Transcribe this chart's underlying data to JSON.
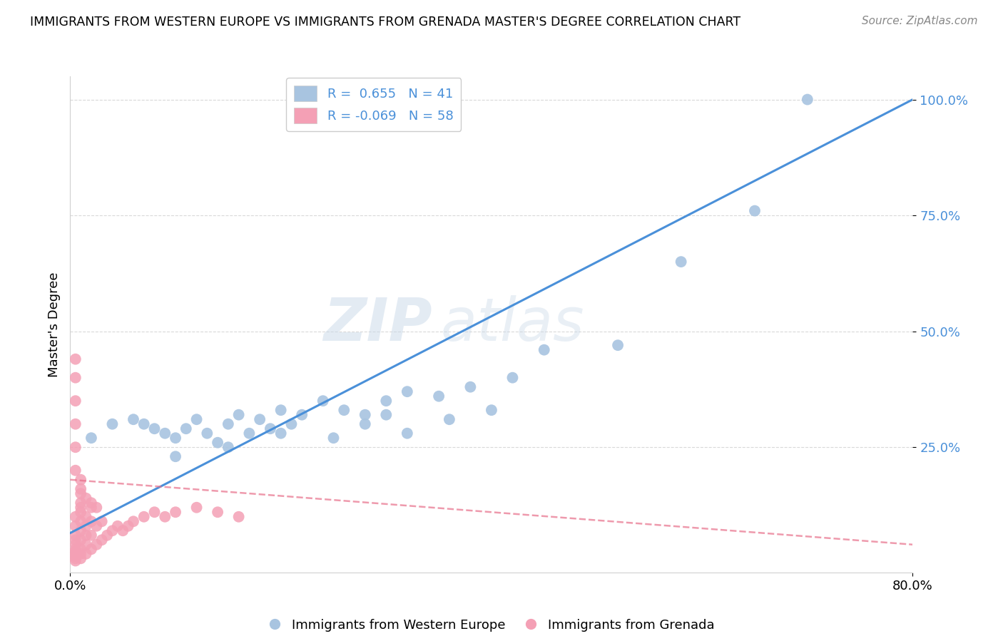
{
  "title": "IMMIGRANTS FROM WESTERN EUROPE VS IMMIGRANTS FROM GRENADA MASTER'S DEGREE CORRELATION CHART",
  "source": "Source: ZipAtlas.com",
  "ylabel": "Master's Degree",
  "ytick_labels": [
    "25.0%",
    "50.0%",
    "75.0%",
    "100.0%"
  ],
  "ytick_positions": [
    0.25,
    0.5,
    0.75,
    1.0
  ],
  "xlim": [
    0.0,
    0.8
  ],
  "ylim": [
    -0.02,
    1.05
  ],
  "legend1_label": "R =  0.655   N = 41",
  "legend2_label": "R = -0.069   N = 58",
  "legend_bottom_label1": "Immigrants from Western Europe",
  "legend_bottom_label2": "Immigrants from Grenada",
  "blue_color": "#a8c4e0",
  "pink_color": "#f4a0b5",
  "line_blue": "#4a90d9",
  "line_pink": "#e8708a",
  "tick_color": "#4a90d9",
  "watermark_zip": "ZIP",
  "watermark_atlas": "atlas",
  "blue_scatter_x": [
    0.02,
    0.04,
    0.06,
    0.07,
    0.08,
    0.09,
    0.1,
    0.11,
    0.12,
    0.13,
    0.14,
    0.15,
    0.16,
    0.17,
    0.18,
    0.19,
    0.2,
    0.21,
    0.22,
    0.24,
    0.26,
    0.28,
    0.3,
    0.32,
    0.35,
    0.38,
    0.42,
    0.45,
    0.52,
    0.58,
    0.65,
    0.7,
    0.1,
    0.15,
    0.2,
    0.25,
    0.28,
    0.3,
    0.32,
    0.36,
    0.4
  ],
  "blue_scatter_y": [
    0.27,
    0.3,
    0.31,
    0.3,
    0.29,
    0.28,
    0.27,
    0.29,
    0.31,
    0.28,
    0.26,
    0.3,
    0.32,
    0.28,
    0.31,
    0.29,
    0.33,
    0.3,
    0.32,
    0.35,
    0.33,
    0.32,
    0.35,
    0.37,
    0.36,
    0.38,
    0.4,
    0.46,
    0.47,
    0.65,
    0.76,
    1.0,
    0.23,
    0.25,
    0.28,
    0.27,
    0.3,
    0.32,
    0.28,
    0.31,
    0.33
  ],
  "pink_scatter_x": [
    0.005,
    0.005,
    0.005,
    0.005,
    0.005,
    0.005,
    0.005,
    0.005,
    0.005,
    0.005,
    0.005,
    0.01,
    0.01,
    0.01,
    0.01,
    0.01,
    0.01,
    0.01,
    0.01,
    0.01,
    0.01,
    0.015,
    0.015,
    0.015,
    0.015,
    0.015,
    0.02,
    0.02,
    0.02,
    0.02,
    0.025,
    0.025,
    0.03,
    0.03,
    0.035,
    0.04,
    0.045,
    0.05,
    0.055,
    0.06,
    0.07,
    0.08,
    0.09,
    0.1,
    0.12,
    0.14,
    0.16,
    0.005,
    0.005,
    0.005,
    0.005,
    0.005,
    0.005,
    0.01,
    0.01,
    0.015,
    0.02,
    0.025
  ],
  "pink_scatter_y": [
    0.005,
    0.01,
    0.015,
    0.02,
    0.025,
    0.03,
    0.04,
    0.05,
    0.06,
    0.08,
    0.1,
    0.01,
    0.02,
    0.03,
    0.05,
    0.07,
    0.09,
    0.11,
    0.12,
    0.13,
    0.15,
    0.02,
    0.04,
    0.06,
    0.08,
    0.1,
    0.03,
    0.06,
    0.09,
    0.12,
    0.04,
    0.08,
    0.05,
    0.09,
    0.06,
    0.07,
    0.08,
    0.07,
    0.08,
    0.09,
    0.1,
    0.11,
    0.1,
    0.11,
    0.12,
    0.11,
    0.1,
    0.2,
    0.25,
    0.3,
    0.35,
    0.4,
    0.44,
    0.16,
    0.18,
    0.14,
    0.13,
    0.12
  ],
  "blue_line_x": [
    0.0,
    0.8
  ],
  "blue_line_y": [
    0.065,
    1.0
  ],
  "pink_line_x": [
    0.0,
    0.8
  ],
  "pink_line_y": [
    0.18,
    0.04
  ]
}
